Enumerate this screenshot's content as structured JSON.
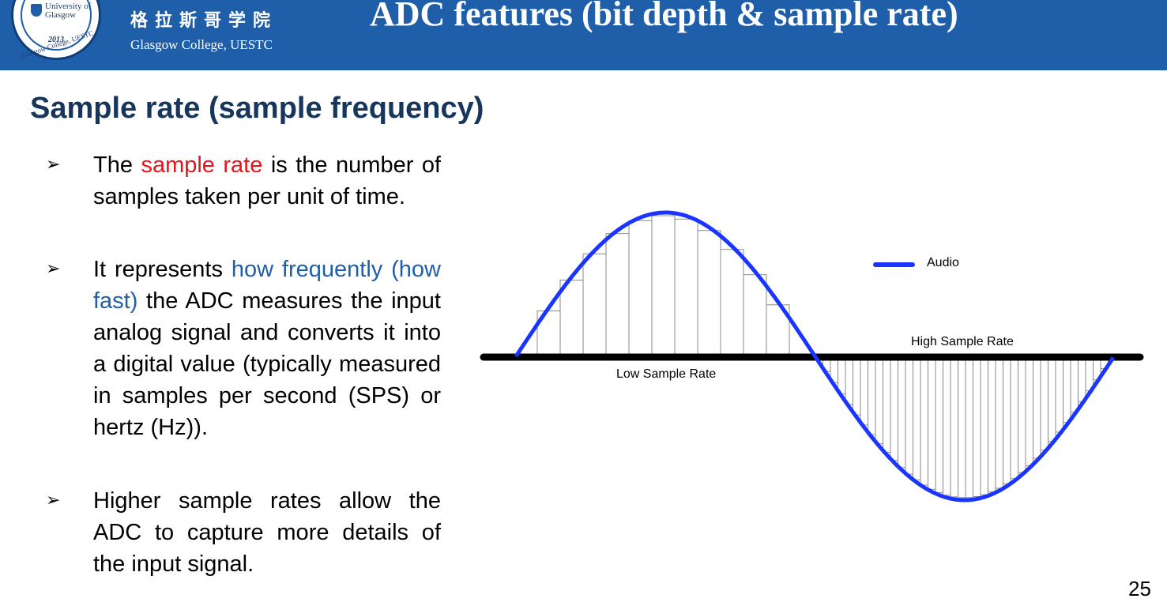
{
  "header": {
    "logo_text": "University of Glasgow",
    "logo_year": "2013",
    "logo_ring": "Glasgow College, UESTC",
    "college_cn": "格拉斯哥学院",
    "college_en": "Glasgow College, UESTC",
    "title": "ADC features (bit depth & sample rate)",
    "background_color": "#1f5ea8"
  },
  "heading": "Sample rate (sample frequency)",
  "bullets": [
    {
      "icon": "arrow-bullet-icon",
      "parts": [
        {
          "text": "The ",
          "color": "#000000"
        },
        {
          "text": "sample rate",
          "color": "#e8141b"
        },
        {
          "text": " is the number of samples taken per unit of time.",
          "color": "#000000"
        }
      ]
    },
    {
      "icon": "arrow-bullet-icon",
      "parts": [
        {
          "text": "It represents ",
          "color": "#000000"
        },
        {
          "text": "how frequently (how fast)",
          "color": "#1f5ea8"
        },
        {
          "text": " the ADC measures the input analog signal and converts it into a digital value (typically measured in samples per second (SPS) or hertz (Hz)).",
          "color": "#000000"
        }
      ]
    },
    {
      "icon": "arrow-bullet-icon",
      "parts": [
        {
          "text": "Higher sample rates allow the ADC to capture more details of the input signal.",
          "color": "#000000"
        }
      ]
    }
  ],
  "diagram": {
    "legend_label": "Audio",
    "label_high": "High Sample Rate",
    "label_low": "Low Sample Rate",
    "wave_color": "#1a35ff"
  },
  "page_number": "25"
}
